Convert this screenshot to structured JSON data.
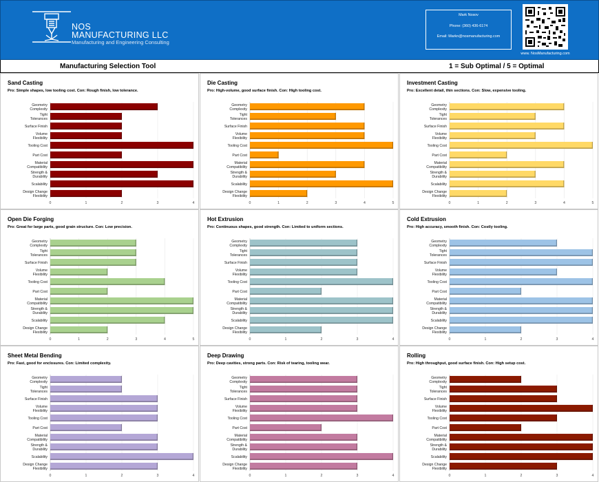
{
  "header": {
    "company_line1": "NOS",
    "company_line2": "MANUFACTURING LLC",
    "tagline": "Manufacturing and Engineering Consulting",
    "contact_name": "Mark Nosov",
    "contact_phone": "Phone: (360) 436-6174",
    "contact_email": "Email: Markn@nosmanufacturing.com",
    "website": "www. NosManufacturing.com",
    "background_color": "#0F6FC6"
  },
  "toolbar": {
    "title": "Manufacturing Selection Tool",
    "scale_note": "1 = Sub Optimal / 5 = Optimal"
  },
  "chart_data": [
    {
      "type": "bar",
      "title": "Sand Casting",
      "subtitle": "Pro: Simple shapes, low tooling cost. Con: Rough finish, low tolerance.",
      "categories": [
        "Geometry Complexity",
        "Tight Tolerances",
        "Surface Finish",
        "Volume Flexibility",
        "Tooling Cost",
        "Part Cost",
        "Material Compatibility",
        "Strength & Durability",
        "Scalability",
        "Design Change Flexibility"
      ],
      "values": [
        3,
        2,
        2,
        2,
        4,
        2,
        4,
        3,
        4,
        2
      ],
      "xlim": [
        0,
        4
      ],
      "color": "#8B0000"
    },
    {
      "type": "bar",
      "title": "Die Casting",
      "subtitle": "Pro: High-volume, good surface finish. Con: High tooling cost.",
      "categories": [
        "Geometry Complexity",
        "Tight Tolerances",
        "Surface Finish",
        "Volume Flexibility",
        "Tooling Cost",
        "Part Cost",
        "Material Compatibility",
        "Strength & Durability",
        "Scalability",
        "Design Change Flexibility"
      ],
      "values": [
        4,
        3,
        4,
        4,
        5,
        1,
        4,
        3,
        5,
        2
      ],
      "xlim": [
        0,
        5
      ],
      "color": "#FF9900"
    },
    {
      "type": "bar",
      "title": "Investment Casting",
      "subtitle": "Pro: Excellent detail, thin sections. Con: Slow, expensive tooling.",
      "categories": [
        "Geometry Complexity",
        "Tight Tolerances",
        "Surface Finish",
        "Volume Flexibility",
        "Tooling Cost",
        "Part Cost",
        "Material Compatibility",
        "Strength & Durability",
        "Scalability",
        "Design Change Flexibility"
      ],
      "values": [
        4,
        3,
        4,
        3,
        5,
        2,
        4,
        3,
        4,
        2
      ],
      "xlim": [
        0,
        5
      ],
      "color": "#FFD966"
    },
    {
      "type": "bar",
      "title": "Open Die Forging",
      "subtitle": "Pro: Great for large parts, good grain structure. Con: Low precision.",
      "categories": [
        "Geometry Complexity",
        "Tight Tolerances",
        "Surface Finish",
        "Volume Flexibility",
        "Tooling Cost",
        "Part Cost",
        "Material Compatibility",
        "Strength & Durability",
        "Scalability",
        "Design Change Flexibility"
      ],
      "values": [
        3,
        3,
        3,
        2,
        4,
        2,
        5,
        5,
        4,
        2
      ],
      "xlim": [
        0,
        5
      ],
      "color": "#A9D18E"
    },
    {
      "type": "bar",
      "title": "Hot Extrusion",
      "subtitle": "Pro: Continuous shapes, good strength. Con: Limited to uniform sections.",
      "categories": [
        "Geometry Complexity",
        "Tight Tolerances",
        "Surface Finish",
        "Volume Flexibility",
        "Tooling Cost",
        "Part Cost",
        "Material Compatibility",
        "Strength & Durability",
        "Scalability",
        "Design Change Flexibility"
      ],
      "values": [
        3,
        3,
        3,
        3,
        4,
        2,
        4,
        4,
        4,
        2
      ],
      "xlim": [
        0,
        4
      ],
      "color": "#9DC3C9"
    },
    {
      "type": "bar",
      "title": "Cold Extrusion",
      "subtitle": "Pro: High accuracy, smooth finish. Con: Costly tooling.",
      "categories": [
        "Geometry Complexity",
        "Tight Tolerances",
        "Surface Finish",
        "Volume Flexibility",
        "Tooling Cost",
        "Part Cost",
        "Material Compatibility",
        "Strength & Durability",
        "Scalability",
        "Design Change Flexibility"
      ],
      "values": [
        3,
        4,
        4,
        3,
        4,
        2,
        4,
        4,
        4,
        2
      ],
      "xlim": [
        0,
        4
      ],
      "color": "#9DC3E6"
    },
    {
      "type": "bar",
      "title": "Sheet Metal Bending",
      "subtitle": "Pro: Fast, good for enclosures. Con: Limited complexity.",
      "categories": [
        "Geometry Complexity",
        "Tight Tolerances",
        "Surface Finish",
        "Volume Flexibility",
        "Tooling Cost",
        "Part Cost",
        "Material Compatibility",
        "Strength & Durability",
        "Scalability",
        "Design Change Flexibility"
      ],
      "values": [
        2,
        2,
        3,
        3,
        3,
        2,
        3,
        3,
        4,
        3
      ],
      "xlim": [
        0,
        4
      ],
      "color": "#B4A7D6"
    },
    {
      "type": "bar",
      "title": "Deep Drawing",
      "subtitle": "Pro: Deep cavities, strong parts. Con: Risk of tearing, tooling wear.",
      "categories": [
        "Geometry Complexity",
        "Tight Tolerances",
        "Surface Finish",
        "Volume Flexibility",
        "Tooling Cost",
        "Part Cost",
        "Material Compatibility",
        "Strength & Durability",
        "Scalability",
        "Design Change Flexibility"
      ],
      "values": [
        3,
        3,
        3,
        3,
        4,
        2,
        3,
        3,
        4,
        3
      ],
      "xlim": [
        0,
        4
      ],
      "color": "#C27BA0"
    },
    {
      "type": "bar",
      "title": "Rolling",
      "subtitle": "Pro: High throughput, good surface finish. Con: High setup cost.",
      "categories": [
        "Geometry Complexity",
        "Tight Tolerances",
        "Surface Finish",
        "Volume Flexibility",
        "Tooling Cost",
        "Part Cost",
        "Material Compatibility",
        "Strength & Durability",
        "Scalability",
        "Design Change Flexibility"
      ],
      "values": [
        2,
        3,
        3,
        4,
        3,
        2,
        4,
        4,
        4,
        3
      ],
      "xlim": [
        0,
        4
      ],
      "color": "#8B1A00"
    }
  ]
}
